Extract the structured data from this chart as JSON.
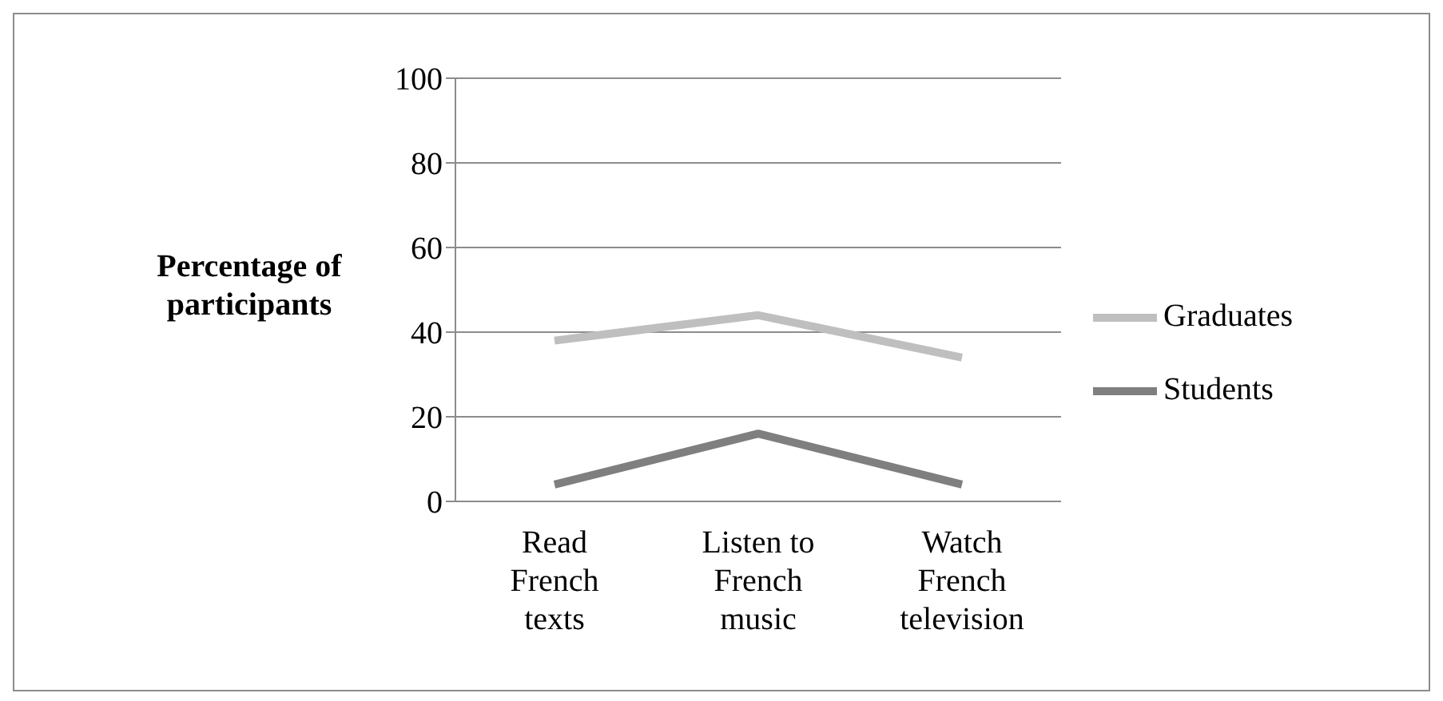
{
  "chart_data": {
    "type": "line",
    "ylabel": "Percentage of participants",
    "categories": [
      "Read French texts",
      "Listen to French music",
      "Watch French television"
    ],
    "series": [
      {
        "name": "Graduates",
        "color": "#bfbfbf",
        "values": [
          38,
          44,
          34
        ]
      },
      {
        "name": "Students",
        "color": "#7f7f7f",
        "values": [
          4,
          16,
          4
        ]
      }
    ],
    "ylim": [
      0,
      100
    ],
    "yticks": [
      0,
      20,
      40,
      60,
      80,
      100
    ],
    "grid": "y",
    "legend": "right",
    "marker": "none",
    "line_style": "solid"
  }
}
